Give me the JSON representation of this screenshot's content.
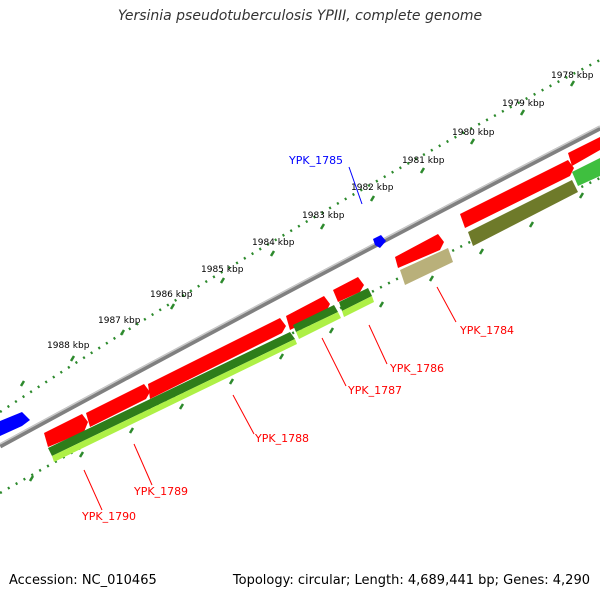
{
  "title": "Yersinia pseudotuberculosis YPIII, complete genome",
  "footer": {
    "accession": "Accession: NC_010465",
    "topology": "Topology: circular; Length: 4,689,441 bp; Genes: 4,290"
  },
  "colors": {
    "forward_gene": "#ff0000",
    "reverse_strand_gene": "#0000ff",
    "backbone": "#808080",
    "scale_ticks": "#2d8a2d",
    "blast_dark_green": "#2e7d1a",
    "blast_olive": "#6e7a2a",
    "blast_light_green": "#aef046",
    "blast_tan": "#b9b07a",
    "blue_label": "#0000ff",
    "red_label": "#ff0000"
  },
  "scale_labels": [
    "1978 kbp",
    "1979 kbp",
    "1980 kbp",
    "1981 kbp",
    "1982 kbp",
    "1983 kbp",
    "1984 kbp",
    "1985 kbp",
    "1986 kbp",
    "1987 kbp",
    "1988 kbp"
  ],
  "gene_labels": [
    "YPK_1785",
    "YPK_1784",
    "YPK_1786",
    "YPK_1787",
    "YPK_1788",
    "YPK_1789",
    "YPK_1790"
  ]
}
